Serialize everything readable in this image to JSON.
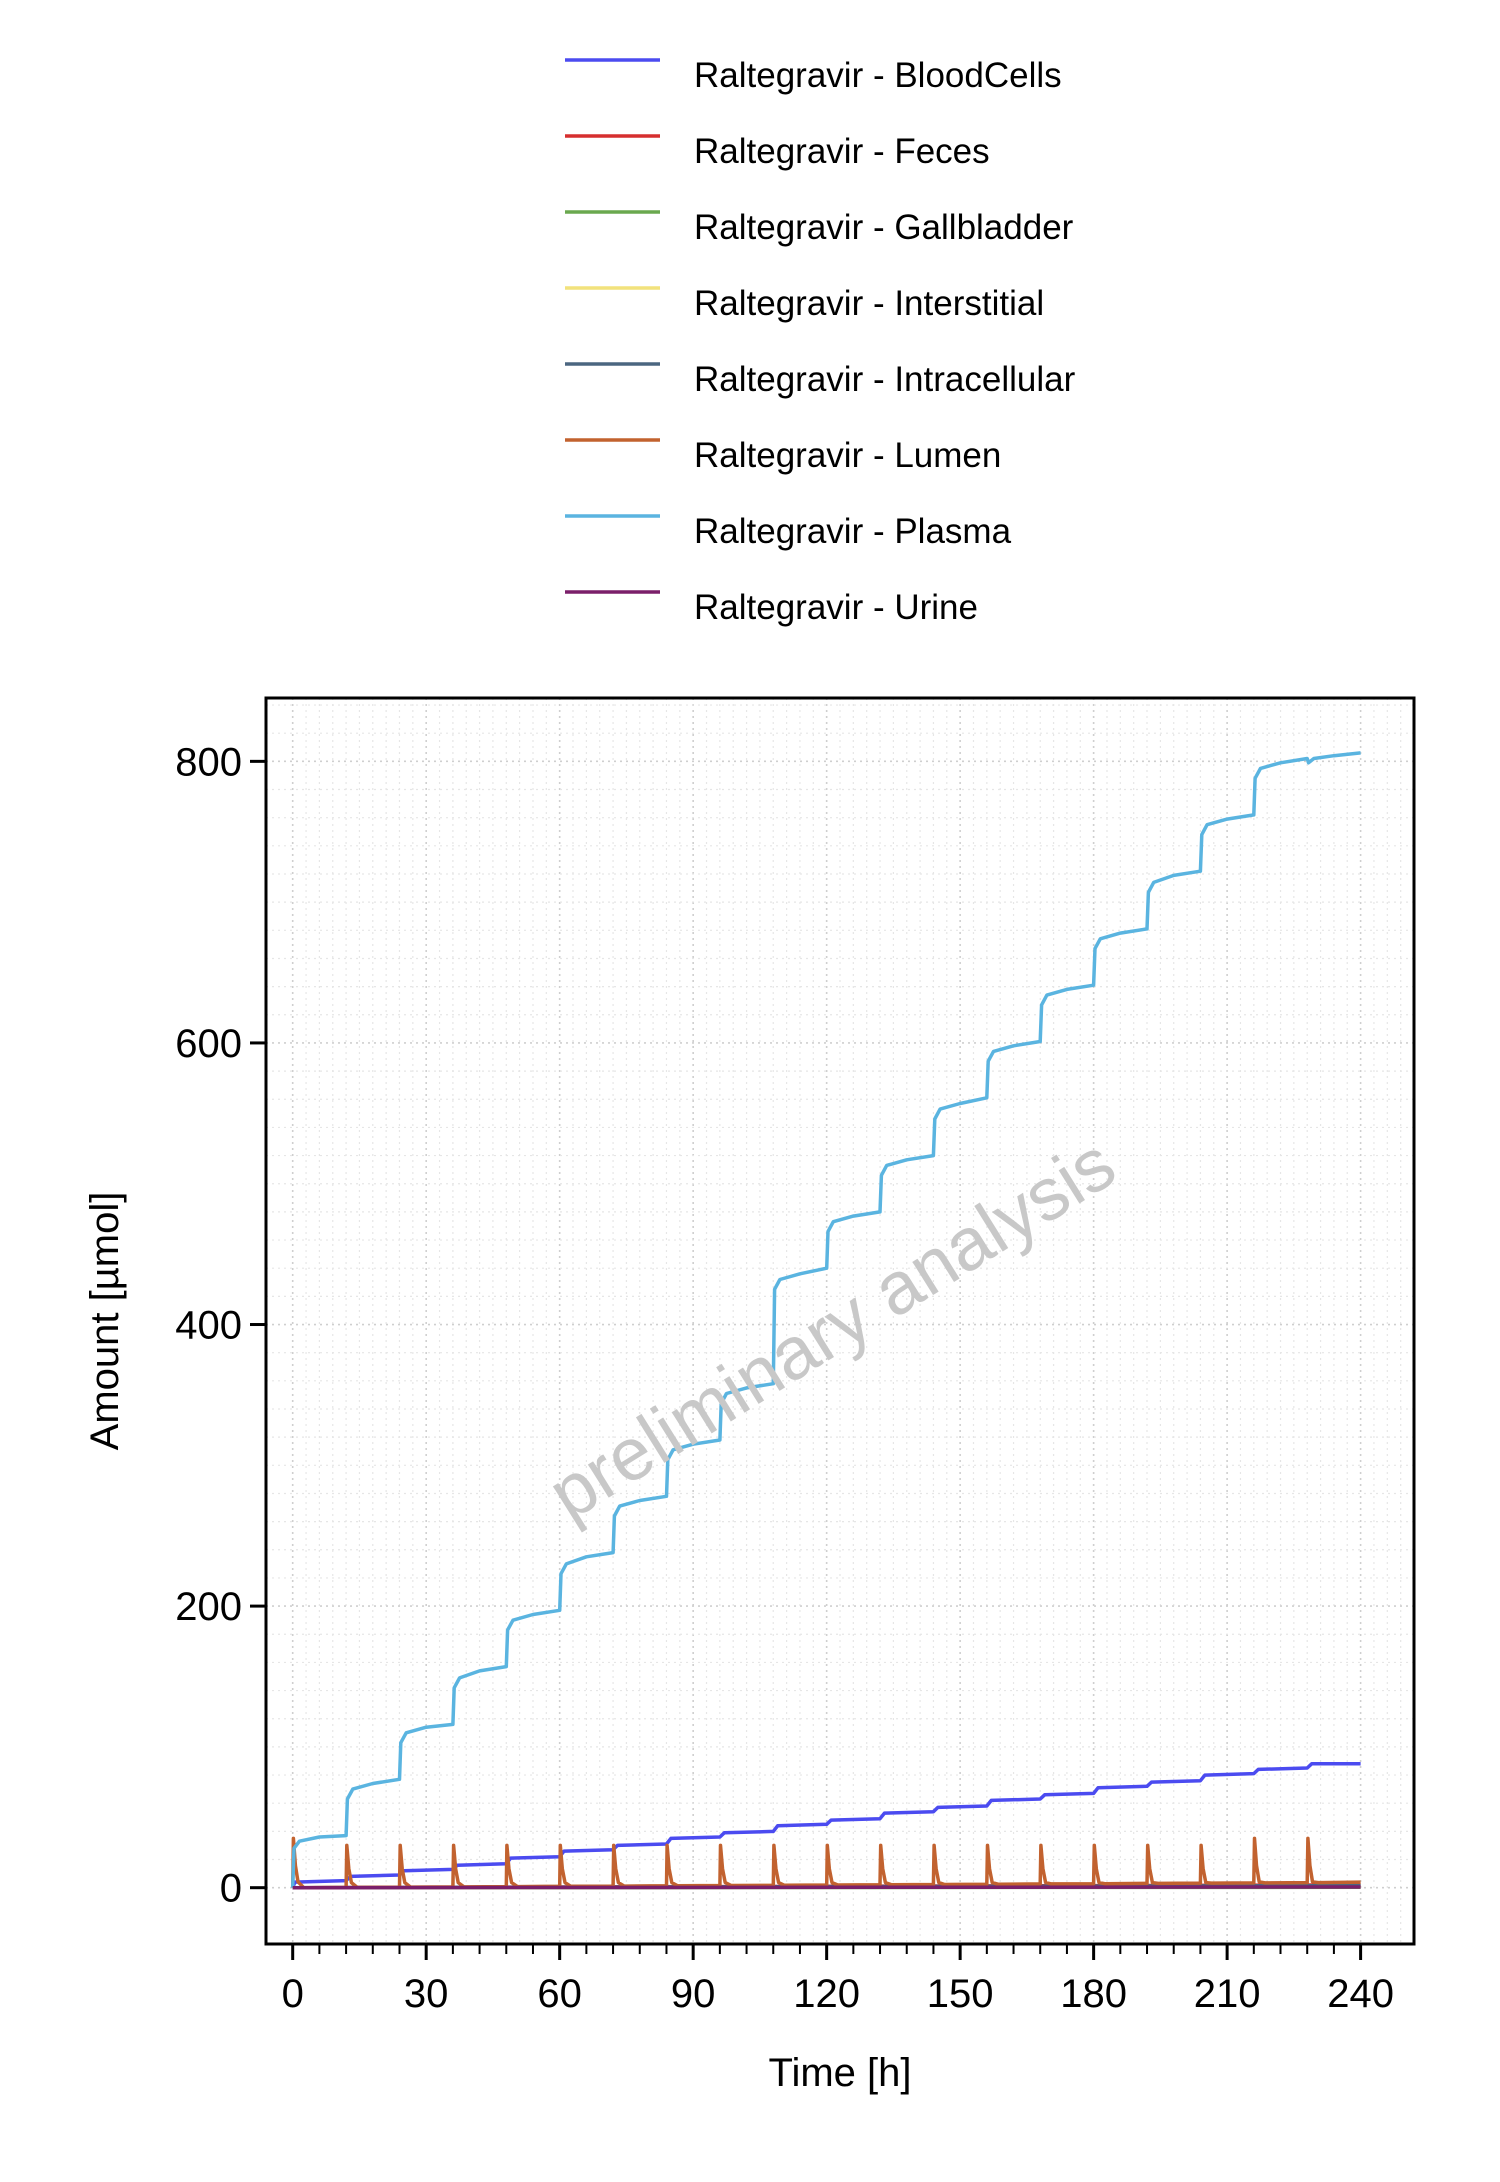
{
  "chart_data": {
    "type": "line",
    "title": "",
    "xlabel": "Time [h]",
    "ylabel": "Amount [µmol]",
    "xlim": [
      -6,
      252
    ],
    "ylim": [
      -40,
      845
    ],
    "xticks": [
      0,
      30,
      60,
      90,
      120,
      150,
      180,
      210,
      240
    ],
    "yticks": [
      0,
      200,
      400,
      600,
      800
    ],
    "grid": true,
    "legend_position": "top",
    "watermark": "preliminary analysis",
    "dosing_interval_h": 12,
    "series": [
      {
        "name": "Raltegravir - BloodCells",
        "color": "#4b4bf0",
        "points": [
          [
            0,
            0
          ],
          [
            0.5,
            4
          ],
          [
            12,
            5
          ],
          [
            13,
            8
          ],
          [
            24,
            9
          ],
          [
            25,
            12
          ],
          [
            36,
            13
          ],
          [
            37,
            16
          ],
          [
            48,
            17
          ],
          [
            49,
            21
          ],
          [
            60,
            22
          ],
          [
            61,
            26
          ],
          [
            72,
            27
          ],
          [
            73,
            30
          ],
          [
            84,
            31
          ],
          [
            85,
            35
          ],
          [
            96,
            36
          ],
          [
            97,
            39
          ],
          [
            108,
            40
          ],
          [
            109,
            44
          ],
          [
            120,
            45
          ],
          [
            121,
            48
          ],
          [
            132,
            49
          ],
          [
            133,
            53
          ],
          [
            144,
            54
          ],
          [
            145,
            57
          ],
          [
            156,
            58
          ],
          [
            157,
            62
          ],
          [
            168,
            63
          ],
          [
            169,
            66
          ],
          [
            180,
            67
          ],
          [
            181,
            71
          ],
          [
            192,
            72
          ],
          [
            193,
            75
          ],
          [
            204,
            76
          ],
          [
            205,
            80
          ],
          [
            216,
            81
          ],
          [
            217,
            84
          ],
          [
            228,
            85
          ],
          [
            229,
            88
          ],
          [
            240,
            88
          ]
        ]
      },
      {
        "name": "Raltegravir - Feces",
        "color": "#d62f2f",
        "points": [
          [
            0,
            0
          ],
          [
            60,
            0.5
          ],
          [
            120,
            1
          ],
          [
            180,
            1.5
          ],
          [
            240,
            2
          ]
        ]
      },
      {
        "name": "Raltegravir - Gallbladder",
        "color": "#6aa84f",
        "points": [
          [
            0,
            0
          ],
          [
            240,
            0.3
          ]
        ]
      },
      {
        "name": "Raltegravir - Interstitial",
        "color": "#f2e27c",
        "points": [
          [
            0,
            0
          ],
          [
            240,
            1
          ]
        ]
      },
      {
        "name": "Raltegravir - Intracellular",
        "color": "#4b6680",
        "points": [
          [
            0,
            0
          ],
          [
            240,
            1.5
          ]
        ]
      },
      {
        "name": "Raltegravir - Lumen",
        "color": "#c2622f",
        "dose_peaks": [
          35,
          30,
          30,
          30,
          30,
          30,
          30,
          30,
          30,
          30,
          30,
          30,
          30,
          30,
          30,
          30,
          30,
          30,
          35,
          35
        ],
        "baseline_end": 4
      },
      {
        "name": "Raltegravir - Plasma",
        "color": "#5ab4e0",
        "points": [
          [
            0,
            0
          ],
          [
            0.3,
            28
          ],
          [
            1.5,
            33
          ],
          [
            6,
            36
          ],
          [
            12,
            37
          ],
          [
            12.3,
            63
          ],
          [
            13.5,
            70
          ],
          [
            18,
            74
          ],
          [
            24,
            77
          ],
          [
            24.3,
            103
          ],
          [
            25.5,
            110
          ],
          [
            30,
            114
          ],
          [
            36,
            116
          ],
          [
            36.3,
            142
          ],
          [
            37.5,
            149
          ],
          [
            42,
            154
          ],
          [
            48,
            157
          ],
          [
            48.3,
            183
          ],
          [
            49.5,
            190
          ],
          [
            54,
            194
          ],
          [
            60,
            197
          ],
          [
            60.3,
            223
          ],
          [
            61.5,
            230
          ],
          [
            66,
            235
          ],
          [
            72,
            238
          ],
          [
            72.3,
            264
          ],
          [
            73.5,
            271
          ],
          [
            78,
            275
          ],
          [
            84,
            278
          ],
          [
            84.3,
            304
          ],
          [
            85.5,
            311
          ],
          [
            90,
            315
          ],
          [
            96,
            318
          ],
          [
            96.3,
            344
          ],
          [
            97.5,
            351
          ],
          [
            102,
            355
          ],
          [
            108,
            358
          ],
          [
            108.3,
            425
          ],
          [
            109.5,
            432
          ],
          [
            114,
            436
          ],
          [
            120,
            440
          ],
          [
            120.3,
            466
          ],
          [
            121.5,
            473
          ],
          [
            126,
            477
          ],
          [
            132,
            480
          ],
          [
            132.3,
            506
          ],
          [
            133.5,
            513
          ],
          [
            138,
            517
          ],
          [
            144,
            520
          ],
          [
            144.3,
            546
          ],
          [
            145.5,
            553
          ],
          [
            150,
            557
          ],
          [
            156,
            561
          ],
          [
            156.3,
            587
          ],
          [
            157.5,
            594
          ],
          [
            162,
            598
          ],
          [
            168,
            601
          ],
          [
            168.3,
            627
          ],
          [
            169.5,
            634
          ],
          [
            174,
            638
          ],
          [
            180,
            641
          ],
          [
            180.3,
            667
          ],
          [
            181.5,
            674
          ],
          [
            186,
            678
          ],
          [
            192,
            681
          ],
          [
            192.3,
            707
          ],
          [
            193.5,
            714
          ],
          [
            198,
            719
          ],
          [
            204,
            722
          ],
          [
            204.3,
            748
          ],
          [
            205.5,
            755
          ],
          [
            210,
            759
          ],
          [
            216,
            762
          ],
          [
            216.3,
            788
          ],
          [
            217.5,
            795
          ],
          [
            222,
            799
          ],
          [
            228,
            802
          ],
          [
            228.3,
            799
          ],
          [
            229.5,
            802
          ],
          [
            234,
            804
          ],
          [
            240,
            806
          ]
        ]
      },
      {
        "name": "Raltegravir - Urine",
        "color": "#7b1f6a",
        "points": [
          [
            0,
            0
          ],
          [
            240,
            0.5
          ]
        ]
      }
    ]
  }
}
